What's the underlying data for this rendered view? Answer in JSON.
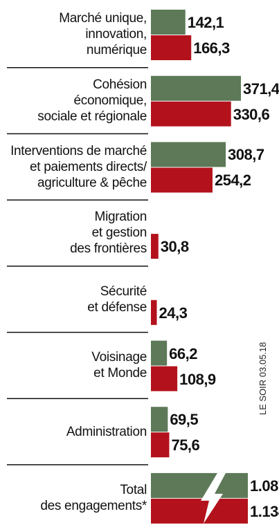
{
  "chart_data": {
    "type": "hbar",
    "categories": [
      "Marché unique,\ninnovation,\nnumérique",
      "Cohésion\néconomique,\nsociale et régionale",
      "Interventions de marché\net paiements directs/\nagriculture & pêche",
      "Migration\net gestion\ndes frontières",
      "Sécurité\net défense",
      "Voisinage\net Monde",
      "Administration",
      "Total\ndes engagements*"
    ],
    "series": [
      {
        "color": "#5d7958",
        "values": [
          142.1,
          371.4,
          308.7,
          null,
          null,
          66.2,
          69.5,
          1087
        ],
        "value_labels": [
          "142,1",
          "371,4",
          "308,7",
          null,
          null,
          "66,2",
          "69,5",
          "1.087"
        ]
      },
      {
        "color": "#b3121c",
        "values": [
          166.3,
          330.6,
          254.2,
          30.8,
          24.3,
          108.9,
          75.6,
          1134
        ],
        "value_labels": [
          "166,3",
          "330,6",
          "254,2",
          "30,8",
          "24,3",
          "108,9",
          "75,6",
          "1.134"
        ]
      }
    ],
    "xlim": [
      0,
      400
    ],
    "annotation": "LE SOIR 03.05.18"
  }
}
